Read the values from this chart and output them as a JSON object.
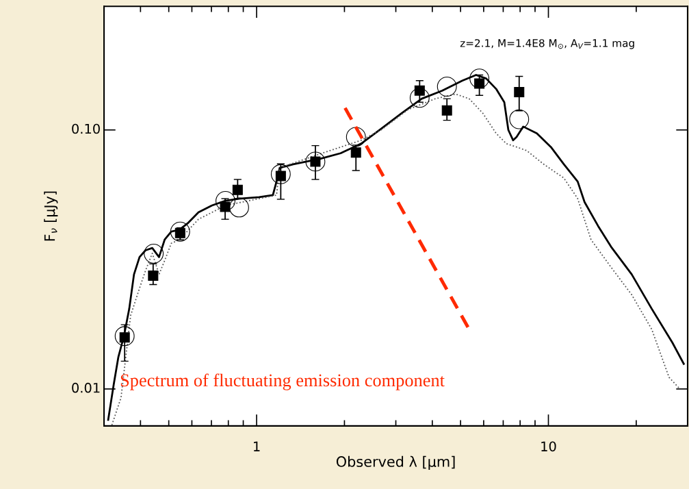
{
  "chart_data": {
    "type": "line",
    "xlabel": "Observed λ [μm]",
    "ylabel": "F$_{ν}$ [μJy]",
    "log": "xy",
    "xlim": [
      0.3,
      30
    ],
    "ylim": [
      0.0072,
      0.3
    ],
    "xticks": [
      1,
      10
    ],
    "yticks": [
      {
        "value": 0.1,
        "label": "0.10"
      },
      {
        "value": 0.01,
        "label": "0.01"
      }
    ],
    "grid": false,
    "legend": false,
    "annotations": [
      "z=2.1, M=1.4E8 M$_{⊙}$, A$_{V}$=1.1 mag",
      "Spectrum of fluctuating emission component"
    ],
    "series": [
      {
        "color": "#000000",
        "line_style": "solid",
        "marker": "none",
        "x": [
          0.31,
          0.324,
          0.336,
          0.351,
          0.366,
          0.38,
          0.397,
          0.416,
          0.439,
          0.463,
          0.484,
          0.51,
          0.544,
          0.583,
          0.632,
          0.703,
          0.782,
          0.871,
          1.02,
          1.137,
          1.17,
          1.2,
          1.334,
          1.65,
          1.94,
          2.28,
          2.67,
          3.14,
          3.68,
          4.32,
          5.07,
          5.65,
          6.12,
          6.62,
          7.06,
          7.29,
          7.57,
          7.78,
          8.2,
          9.13,
          10.2,
          11.3,
          12.6,
          13.3,
          14.8,
          16.4,
          19.3,
          22.6,
          26.6,
          29.1
        ],
        "values": [
          0.0076,
          0.01045,
          0.0133,
          0.016,
          0.0204,
          0.0277,
          0.0323,
          0.0343,
          0.035,
          0.0323,
          0.0377,
          0.0405,
          0.0412,
          0.0438,
          0.0481,
          0.0511,
          0.0533,
          0.0543,
          0.055,
          0.056,
          0.0632,
          0.0714,
          0.0737,
          0.0774,
          0.0813,
          0.0885,
          0.101,
          0.116,
          0.132,
          0.1417,
          0.155,
          0.163,
          0.158,
          0.144,
          0.128,
          0.1,
          0.0912,
          0.094,
          0.103,
          0.097,
          0.0859,
          0.0737,
          0.0632,
          0.0527,
          0.0426,
          0.0354,
          0.0277,
          0.0204,
          0.0151,
          0.0125
        ]
      },
      {
        "color": "#555555",
        "line_style": "dotted",
        "marker": "none",
        "x": [
          0.319,
          0.343,
          0.37,
          0.397,
          0.416,
          0.439,
          0.463,
          0.484,
          0.51,
          0.544,
          0.632,
          0.782,
          1.02,
          1.17,
          1.2,
          1.65,
          2.28,
          2.67,
          3.31,
          4.1,
          4.81,
          5.35,
          5.96,
          6.62,
          7.18,
          7.78,
          8.43,
          9.64,
          11.3,
          12.6,
          14.0,
          16.4,
          19.3,
          22.6,
          25.9,
          28.0
        ],
        "values": [
          0.00725,
          0.00925,
          0.0192,
          0.0245,
          0.0286,
          0.0334,
          0.0277,
          0.0313,
          0.0365,
          0.0377,
          0.0452,
          0.0511,
          0.0543,
          0.056,
          0.0714,
          0.0808,
          0.0912,
          0.1,
          0.12,
          0.132,
          0.1375,
          0.132,
          0.116,
          0.097,
          0.0885,
          0.0859,
          0.0832,
          0.0737,
          0.0652,
          0.0543,
          0.0377,
          0.0295,
          0.0231,
          0.017,
          0.0111,
          0.0101
        ]
      },
      {
        "type": "scatter",
        "color": "#000000",
        "marker": "circle",
        "x": [
          0.353,
          0.444,
          0.547,
          0.782,
          0.871,
          1.21,
          1.59,
          2.19,
          3.62,
          4.49,
          5.8,
          7.94
        ],
        "values": [
          0.016,
          0.0333,
          0.0405,
          0.0532,
          0.0502,
          0.0675,
          0.0755,
          0.094,
          0.133,
          0.147,
          0.158,
          0.11
        ]
      },
      {
        "type": "scatter",
        "color": "#000000",
        "marker": "square",
        "x": [
          0.353,
          0.442,
          0.547,
          0.78,
          0.861,
          1.21,
          1.59,
          2.19,
          3.62,
          4.49,
          5.8,
          7.94
        ],
        "values": [
          0.0158,
          0.0274,
          0.04,
          0.0505,
          0.0587,
          0.0664,
          0.0755,
          0.0818,
          0.142,
          0.119,
          0.151,
          0.14
        ],
        "errors": [
          [
            0.0128,
            0.0177
          ],
          [
            0.0253,
            0.0304
          ],
          [
            0.0377,
            0.0419
          ],
          [
            0.0452,
            0.0543
          ],
          [
            0.0543,
            0.0644
          ],
          [
            0.054,
            0.074
          ],
          [
            0.0644,
            0.087
          ],
          [
            0.0697,
            0.0874
          ],
          [
            0.128,
            0.155
          ],
          [
            0.109,
            0.132
          ],
          [
            0.136,
            0.163
          ],
          [
            0.1186,
            0.161
          ]
        ]
      },
      {
        "type": "line",
        "color": "#ff2a00",
        "line_style": "dashed",
        "marker": "none",
        "x": [
          2.01,
          5.35
        ],
        "values": [
          0.1216,
          0.017
        ]
      }
    ]
  }
}
